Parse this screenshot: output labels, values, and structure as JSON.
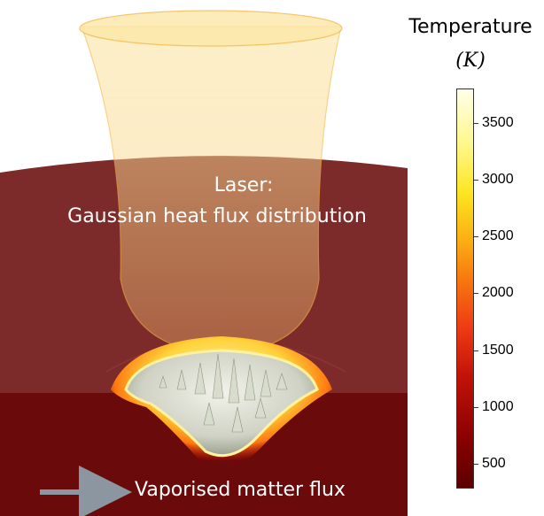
{
  "laser_label": {
    "line1": "Laser:",
    "line2": "Gaussian heat flux distribution"
  },
  "flux_label": "Vaporised matter flux",
  "colorbar": {
    "title": "Temperature",
    "unit": "(K)",
    "min": 300,
    "max": 3800,
    "ticks": [
      {
        "value": 500,
        "label": "500"
      },
      {
        "value": 1000,
        "label": "1000"
      },
      {
        "value": 1500,
        "label": "1500"
      },
      {
        "value": 2000,
        "label": "2000"
      },
      {
        "value": 2500,
        "label": "2500"
      },
      {
        "value": 3000,
        "label": "3000"
      },
      {
        "value": 3500,
        "label": "3500"
      }
    ]
  }
}
